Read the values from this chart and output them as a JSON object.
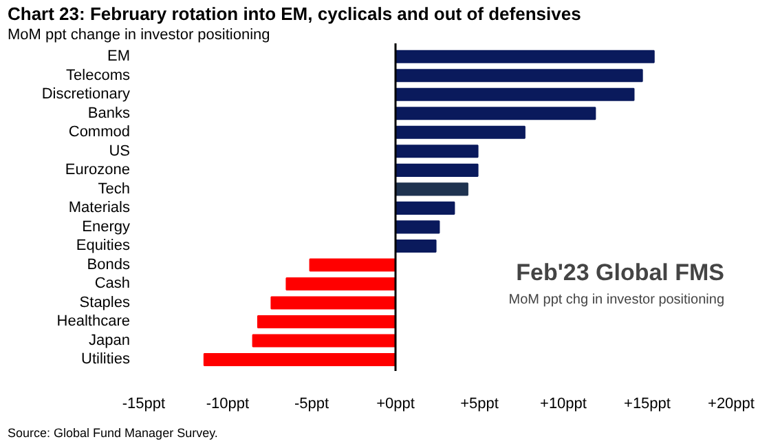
{
  "chart_data": {
    "type": "bar",
    "orientation": "horizontal",
    "title": "Chart 23: February rotation into EM, cyclicals and out of defensives",
    "subtitle": "MoM ppt change in investor positioning",
    "categories": [
      "EM",
      "Telecoms",
      "Discretionary",
      "Banks",
      "Commod",
      "US",
      "Eurozone",
      "Tech",
      "Materials",
      "Energy",
      "Equities",
      "Bonds",
      "Cash",
      "Staples",
      "Healthcare",
      "Japan",
      "Utilities"
    ],
    "values": [
      15.4,
      14.7,
      14.2,
      11.9,
      7.7,
      4.9,
      4.9,
      4.3,
      3.5,
      2.6,
      2.4,
      -5.1,
      -6.5,
      -7.4,
      -8.2,
      -8.5,
      -11.4
    ],
    "colors": [
      "#0a1a5c",
      "#0a1a5c",
      "#0a1a5c",
      "#0a1a5c",
      "#0a1a5c",
      "#0a1a5c",
      "#0a1a5c",
      "#1f3350",
      "#0a1a5c",
      "#0a1a5c",
      "#0a1a5c",
      "#ff0000",
      "#ff0000",
      "#ff0000",
      "#ff0000",
      "#ff0000",
      "#ff0000"
    ],
    "xlim": [
      -15,
      20
    ],
    "xticks": [
      {
        "value": -15,
        "label": "-15ppt"
      },
      {
        "value": -10,
        "label": "-10ppt"
      },
      {
        "value": -5,
        "label": "-5ppt"
      },
      {
        "value": 0,
        "label": "+0ppt"
      },
      {
        "value": 5,
        "label": "+5ppt"
      },
      {
        "value": 10,
        "label": "+10ppt"
      },
      {
        "value": 15,
        "label": "+15ppt"
      },
      {
        "value": 20,
        "label": "+20ppt"
      }
    ],
    "ref_lines": [
      {
        "axis": "x",
        "value": 0,
        "color": "#000000"
      }
    ],
    "grid": false,
    "annotations": [
      "Feb'23 Global FMS",
      "MoM ppt chg in investor positioning",
      "Source: Global Fund Manager Survey."
    ]
  }
}
